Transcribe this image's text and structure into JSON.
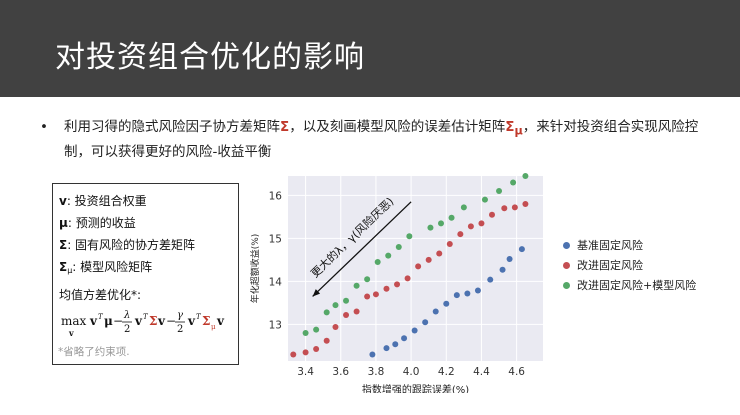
{
  "slide": {
    "title": "对投资组合优化的影响"
  },
  "bullet": {
    "marker": "•",
    "text_a": "利用习得的隐式风险因子协方差矩阵",
    "sym_sigma": "Σ",
    "text_b": "，以及刻画模型风险的误差估计矩阵",
    "sym_sigma_mu": "Σ",
    "sym_mu_sub": "μ",
    "text_c": "，来针对投资组合实现风险控制，可以获得更好的风险-收益平衡"
  },
  "legend_box": {
    "line1_sym": "v",
    "line1_text": ": 投资组合权重",
    "line2_sym": "μ",
    "line2_text": ": 预测的收益",
    "line3_sym": "Σ",
    "line3_text": ": 固有风险的协方差矩阵",
    "line4_sym": "Σ",
    "line4_sub": "μ",
    "line4_text": ": 模型风险矩阵",
    "formula_title": "均值方差优化*:",
    "formula_max": "max",
    "formula_var": "v",
    "formula_lambda": "λ",
    "formula_gamma": "γ",
    "formula_two": "2",
    "note": "*省略了约束项."
  },
  "chart_data": {
    "type": "scatter",
    "xlabel": "指数增强的跟踪误差(%)",
    "ylabel": "年化超额收益(%)",
    "xlim": [
      3.3,
      4.75
    ],
    "ylim": [
      12.15,
      16.45
    ],
    "xticks": [
      "3.4",
      "3.6",
      "3.8",
      "4.0",
      "4.2",
      "4.4",
      "4.6"
    ],
    "yticks": [
      "13",
      "14",
      "15",
      "16"
    ],
    "grid": true,
    "annotation": {
      "text": "更大的λ，γ(风险厌恶)",
      "arrow_from": [
        4.0,
        15.85
      ],
      "arrow_to": [
        3.44,
        13.65
      ]
    },
    "legend_position": "right",
    "series": [
      {
        "name": "基准固定风险",
        "color": "#4C72B0",
        "points": [
          [
            3.78,
            12.3
          ],
          [
            3.86,
            12.45
          ],
          [
            3.91,
            12.54
          ],
          [
            3.96,
            12.68
          ],
          [
            4.02,
            12.86
          ],
          [
            4.08,
            13.05
          ],
          [
            4.14,
            13.3
          ],
          [
            4.2,
            13.48
          ],
          [
            4.26,
            13.68
          ],
          [
            4.32,
            13.72
          ],
          [
            4.38,
            13.79
          ],
          [
            4.45,
            14.04
          ],
          [
            4.52,
            14.27
          ],
          [
            4.56,
            14.52
          ],
          [
            4.63,
            14.75
          ]
        ]
      },
      {
        "name": "改进固定风险",
        "color": "#C44E52",
        "points": [
          [
            3.33,
            12.3
          ],
          [
            3.4,
            12.35
          ],
          [
            3.46,
            12.43
          ],
          [
            3.52,
            12.62
          ],
          [
            3.57,
            12.94
          ],
          [
            3.63,
            13.22
          ],
          [
            3.69,
            13.3
          ],
          [
            3.75,
            13.65
          ],
          [
            3.8,
            13.7
          ],
          [
            3.86,
            13.83
          ],
          [
            3.92,
            13.93
          ],
          [
            3.98,
            14.07
          ],
          [
            4.04,
            14.35
          ],
          [
            4.1,
            14.5
          ],
          [
            4.16,
            14.65
          ],
          [
            4.22,
            14.87
          ],
          [
            4.28,
            15.1
          ],
          [
            4.34,
            15.28
          ],
          [
            4.4,
            15.35
          ],
          [
            4.46,
            15.55
          ],
          [
            4.53,
            15.7
          ],
          [
            4.59,
            15.72
          ],
          [
            4.65,
            15.8
          ]
        ]
      },
      {
        "name": "改进固定风险+模型风险",
        "color": "#55A868",
        "points": [
          [
            3.4,
            12.8
          ],
          [
            3.46,
            12.88
          ],
          [
            3.52,
            13.28
          ],
          [
            3.57,
            13.45
          ],
          [
            3.63,
            13.55
          ],
          [
            3.69,
            13.9
          ],
          [
            3.75,
            14.05
          ],
          [
            3.81,
            14.45
          ],
          [
            3.87,
            14.6
          ],
          [
            3.93,
            14.8
          ],
          [
            3.99,
            15.05
          ],
          [
            4.11,
            15.25
          ],
          [
            4.17,
            15.35
          ],
          [
            4.23,
            15.48
          ],
          [
            4.3,
            15.72
          ],
          [
            4.42,
            15.9
          ],
          [
            4.5,
            16.1
          ],
          [
            4.58,
            16.3
          ],
          [
            4.65,
            16.45
          ]
        ]
      }
    ]
  }
}
